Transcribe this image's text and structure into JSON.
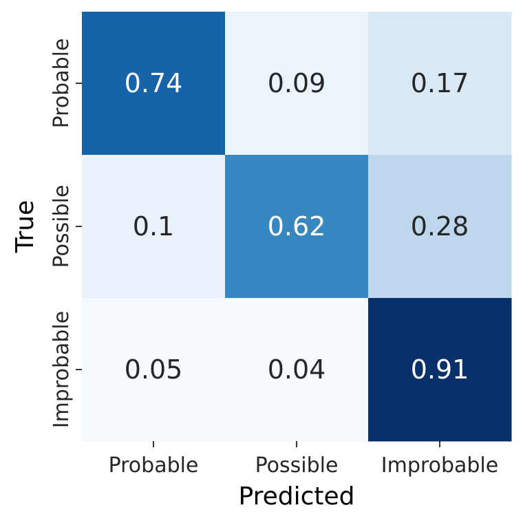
{
  "chart_data": {
    "type": "heatmap",
    "title": "",
    "xlabel": "Predicted",
    "ylabel": "True",
    "x_categories": [
      "Probable",
      "Possible",
      "Improbable"
    ],
    "y_categories": [
      "Probable",
      "Possible",
      "Improbable"
    ],
    "values": [
      [
        0.74,
        0.09,
        0.17
      ],
      [
        0.1,
        0.62,
        0.28
      ],
      [
        0.05,
        0.04,
        0.91
      ]
    ],
    "value_labels": [
      [
        "0.74",
        "0.09",
        "0.17"
      ],
      [
        "0.1",
        "0.62",
        "0.28"
      ],
      [
        "0.05",
        "0.04",
        "0.91"
      ]
    ],
    "colormap": "Blues",
    "colorbar": false,
    "grid": false,
    "vmin": 0.04,
    "vmax": 0.91
  },
  "colors": {
    "light_text": "#ffffff",
    "dark_text": "#262626",
    "tick_color": "#000000"
  }
}
